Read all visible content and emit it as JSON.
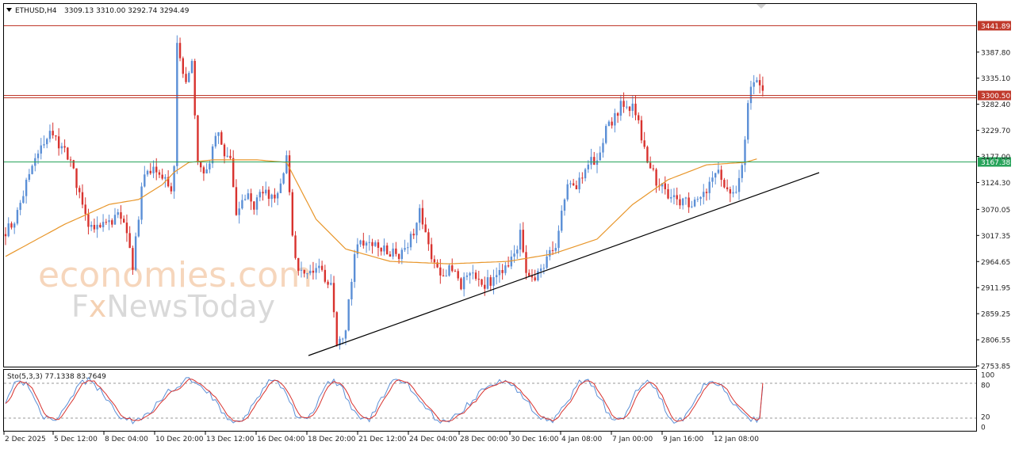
{
  "header": {
    "symbol": "ETHUSD,H4",
    "ohlc": "3309.13 3310.00 3292.74 3294.49"
  },
  "sub_header": {
    "label": "Sto(5,3,3) 77.1338 83.7649"
  },
  "watermark": {
    "line1": "economies.com",
    "line2_a": "F",
    "line2_b": "x",
    "line2_c": "NewsToday"
  },
  "price_axis": [
    "3387.80",
    "3335.10",
    "3282.40",
    "3229.70",
    "3177.00",
    "3124.30",
    "3070.05",
    "3017.35",
    "2964.65",
    "2911.95",
    "2859.25",
    "2806.55",
    "2753.85"
  ],
  "stoch_axis": [
    "100",
    "80",
    "20",
    "0"
  ],
  "time_axis": [
    "2 Dec 2025",
    "5 Dec 12:00",
    "8 Dec 04:00",
    "10 Dec 20:00",
    "13 Dec 12:00",
    "16 Dec 04:00",
    "18 Dec 20:00",
    "21 Dec 12:00",
    "24 Dec 04:00",
    "28 Dec 00:00",
    "30 Dec 16:00",
    "4 Jan 08:00",
    "7 Jan 00:00",
    "9 Jan 16:00",
    "12 Jan 08:00"
  ],
  "levels": [
    {
      "value": 3441.89,
      "label": "3441.89",
      "color": "#c0392b"
    },
    {
      "value": 3300.5,
      "label": "3300.50",
      "color": "#c0392b"
    },
    {
      "value": 3167.38,
      "label": "3167.38",
      "color": "#27a35a"
    }
  ],
  "colors": {
    "bull": "#5b8fd6",
    "bear": "#d8322e",
    "ma": "#e8962a",
    "stoch_main": "#5b8fd6",
    "stoch_signal": "#d8322e"
  },
  "chart_data": {
    "type": "candlestick",
    "symbol": "ETHUSD",
    "timeframe": "H4",
    "y_range": [
      2753.85,
      3441.89
    ],
    "price_path_anchors": [
      [
        0,
        3020
      ],
      [
        4,
        3060
      ],
      [
        8,
        3140
      ],
      [
        12,
        3200
      ],
      [
        15,
        3230
      ],
      [
        20,
        3190
      ],
      [
        25,
        3110
      ],
      [
        28,
        3030
      ],
      [
        33,
        3045
      ],
      [
        38,
        3055
      ],
      [
        41,
        3030
      ],
      [
        43,
        2945
      ],
      [
        46,
        3120
      ],
      [
        50,
        3160
      ],
      [
        53,
        3140
      ],
      [
        56,
        3115
      ],
      [
        57,
        3150
      ],
      [
        58,
        3400
      ],
      [
        61,
        3320
      ],
      [
        63,
        3370
      ],
      [
        65,
        3170
      ],
      [
        68,
        3140
      ],
      [
        71,
        3230
      ],
      [
        73,
        3200
      ],
      [
        76,
        3170
      ],
      [
        78,
        3060
      ],
      [
        81,
        3100
      ],
      [
        84,
        3080
      ],
      [
        88,
        3110
      ],
      [
        91,
        3080
      ],
      [
        95,
        3170
      ],
      [
        98,
        2960
      ],
      [
        102,
        2950
      ],
      [
        106,
        2960
      ],
      [
        110,
        2910
      ],
      [
        112,
        2800
      ],
      [
        115,
        2830
      ],
      [
        118,
        2980
      ],
      [
        120,
        3010
      ],
      [
        125,
        3000
      ],
      [
        128,
        2990
      ],
      [
        132,
        2975
      ],
      [
        136,
        3000
      ],
      [
        140,
        3060
      ],
      [
        143,
        2990
      ],
      [
        147,
        2930
      ],
      [
        150,
        2955
      ],
      [
        154,
        2920
      ],
      [
        158,
        2940
      ],
      [
        162,
        2915
      ],
      [
        166,
        2935
      ],
      [
        169,
        2960
      ],
      [
        172,
        2980
      ],
      [
        174,
        3020
      ],
      [
        176,
        2940
      ],
      [
        179,
        2930
      ],
      [
        183,
        2970
      ],
      [
        186,
        2990
      ],
      [
        190,
        3125
      ],
      [
        193,
        3110
      ],
      [
        196,
        3160
      ],
      [
        200,
        3170
      ],
      [
        203,
        3230
      ],
      [
        206,
        3260
      ],
      [
        209,
        3290
      ],
      [
        212,
        3275
      ],
      [
        214,
        3240
      ],
      [
        217,
        3170
      ],
      [
        220,
        3130
      ],
      [
        223,
        3100
      ],
      [
        226,
        3100
      ],
      [
        229,
        3080
      ],
      [
        232,
        3085
      ],
      [
        235,
        3095
      ],
      [
        238,
        3120
      ],
      [
        241,
        3150
      ],
      [
        244,
        3100
      ],
      [
        247,
        3110
      ],
      [
        249,
        3170
      ],
      [
        252,
        3330
      ],
      [
        254,
        3320
      ],
      [
        256,
        3300
      ]
    ],
    "moving_average_anchors": [
      [
        0,
        2975
      ],
      [
        20,
        3040
      ],
      [
        35,
        3080
      ],
      [
        45,
        3090
      ],
      [
        53,
        3120
      ],
      [
        57,
        3145
      ],
      [
        62,
        3165
      ],
      [
        70,
        3170
      ],
      [
        85,
        3170
      ],
      [
        95,
        3165
      ],
      [
        105,
        3050
      ],
      [
        115,
        2990
      ],
      [
        130,
        2965
      ],
      [
        150,
        2960
      ],
      [
        170,
        2965
      ],
      [
        185,
        2980
      ],
      [
        200,
        3010
      ],
      [
        212,
        3080
      ],
      [
        224,
        3130
      ],
      [
        237,
        3160
      ],
      [
        250,
        3165
      ],
      [
        254,
        3172
      ]
    ],
    "levels": [
      3441.89,
      3300.5,
      3167.38
    ],
    "trendline": {
      "from": {
        "time": "18 Dec",
        "price": 2790
      },
      "to": {
        "time": "15 Jan",
        "price": 3162
      }
    },
    "stochastic": {
      "name": "Sto(5,3,3)",
      "main": 77.1338,
      "signal": 83.7649,
      "levels": [
        80,
        20
      ],
      "range": [
        0,
        100
      ]
    },
    "price_axis": {
      "min": 2753.85,
      "max": 3441.89,
      "step": 52.7
    },
    "x_range": [
      "2 Dec 2025",
      "12 Jan 08:00"
    ]
  }
}
